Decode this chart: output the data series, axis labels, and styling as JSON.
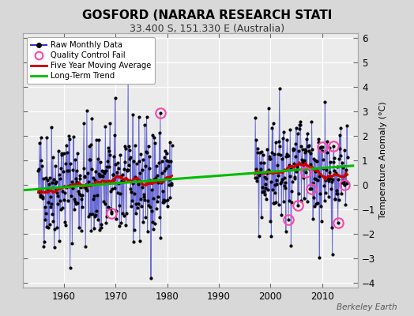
{
  "title": "GOSFORD (NARARA RESEARCH STATI",
  "subtitle": "33.400 S, 151.330 E (Australia)",
  "ylabel": "Temperature Anomaly (°C)",
  "credit": "Berkeley Earth",
  "ylim": [
    -4.2,
    6.2
  ],
  "xlim": [
    1952,
    2017
  ],
  "yticks": [
    -4,
    -3,
    -2,
    -1,
    0,
    1,
    2,
    3,
    4,
    5,
    6
  ],
  "xticks": [
    1960,
    1970,
    1980,
    1990,
    2000,
    2010
  ],
  "bg_color": "#d8d8d8",
  "plot_bg_color": "#ebebeb",
  "raw_color": "#3333cc",
  "moving_avg_color": "#cc0000",
  "trend_color": "#00bb00",
  "qc_fail_color": "#ff44aa",
  "seg1_start": 1955,
  "seg1_end": 1980,
  "seg2_start": 1997,
  "seg2_end": 2014,
  "trend_x": [
    1952,
    2016
  ],
  "trend_y": [
    -0.22,
    0.78
  ],
  "seed1": 42,
  "seed2": 99
}
